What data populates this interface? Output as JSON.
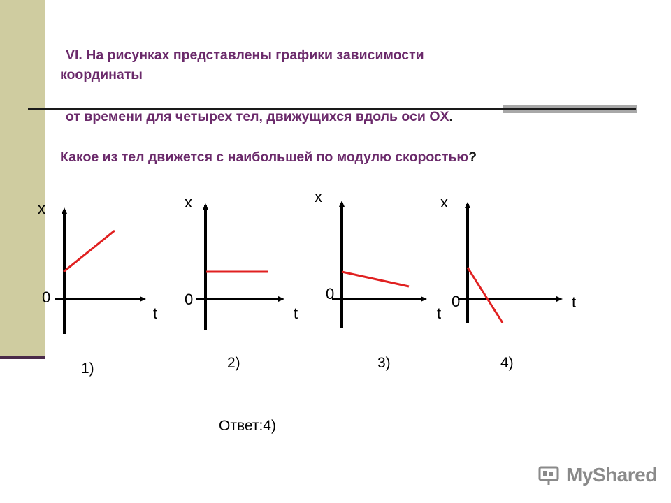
{
  "slide": {
    "line1": "VI. На рисунках представлены графики зависимости",
    "line2": "координаты",
    "line3": "от времени для четырех тел, движущихся вдоль оси OX",
    "line3_end": ".",
    "line4": "Какое из тел движется с наибольшей по модулю скоростью",
    "line4_end": "?"
  },
  "graphs": [
    {
      "label": "1)",
      "y_axis": "x",
      "x_axis": "t",
      "origin": "0"
    },
    {
      "label": "2)",
      "y_axis": "x",
      "x_axis": "t",
      "origin": "0"
    },
    {
      "label": "3)",
      "y_axis": "x",
      "x_axis": "t",
      "origin": "0"
    },
    {
      "label": "4)",
      "y_axis": "x",
      "x_axis": "t",
      "origin": "0"
    }
  ],
  "answer": "Ответ:4)",
  "watermark": "MyShared",
  "colors": {
    "title": "#6b2a6b",
    "line": "#e02020",
    "sidebar": "#cfcca0"
  }
}
